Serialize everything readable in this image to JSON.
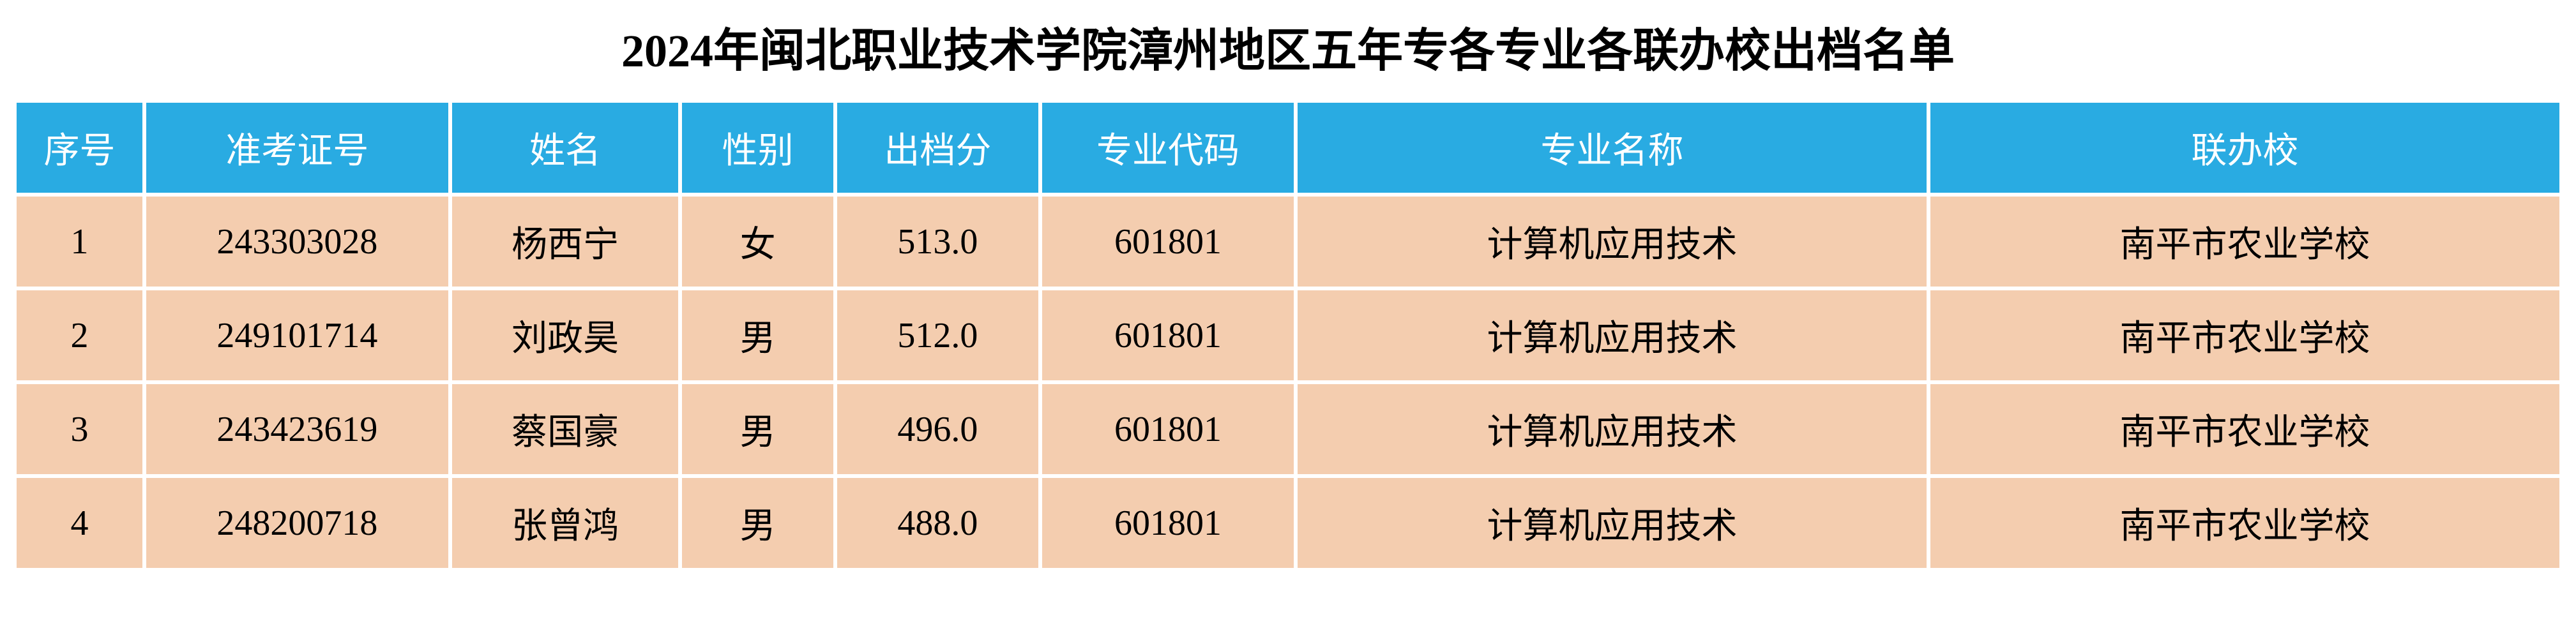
{
  "title": "2024年闽北职业技术学院漳州地区五年专各专业各联办校出档名单",
  "table": {
    "type": "table",
    "header_bg_color": "#29abe2",
    "header_text_color": "#ffffff",
    "row_bg_color": "#f4cdaf",
    "row_text_color": "#000000",
    "background_color": "#ffffff",
    "title_fontsize": 72,
    "header_fontsize": 56,
    "cell_fontsize": 56,
    "columns": [
      {
        "key": "seq",
        "label": "序号",
        "width": "5%"
      },
      {
        "key": "exam_id",
        "label": "准考证号",
        "width": "12%"
      },
      {
        "key": "name",
        "label": "姓名",
        "width": "9%"
      },
      {
        "key": "gender",
        "label": "性别",
        "width": "6%"
      },
      {
        "key": "score",
        "label": "出档分",
        "width": "8%"
      },
      {
        "key": "major_code",
        "label": "专业代码",
        "width": "10%"
      },
      {
        "key": "major_name",
        "label": "专业名称",
        "width": "25%"
      },
      {
        "key": "school",
        "label": "联办校",
        "width": "25%"
      }
    ],
    "rows": [
      {
        "seq": "1",
        "exam_id": "243303028",
        "name": "杨西宁",
        "gender": "女",
        "score": "513.0",
        "major_code": "601801",
        "major_name": "计算机应用技术",
        "school": "南平市农业学校"
      },
      {
        "seq": "2",
        "exam_id": "249101714",
        "name": "刘政昊",
        "gender": "男",
        "score": "512.0",
        "major_code": "601801",
        "major_name": "计算机应用技术",
        "school": "南平市农业学校"
      },
      {
        "seq": "3",
        "exam_id": "243423619",
        "name": "蔡国豪",
        "gender": "男",
        "score": "496.0",
        "major_code": "601801",
        "major_name": "计算机应用技术",
        "school": "南平市农业学校"
      },
      {
        "seq": "4",
        "exam_id": "248200718",
        "name": "张曾鸿",
        "gender": "男",
        "score": "488.0",
        "major_code": "601801",
        "major_name": "计算机应用技术",
        "school": "南平市农业学校"
      }
    ]
  }
}
